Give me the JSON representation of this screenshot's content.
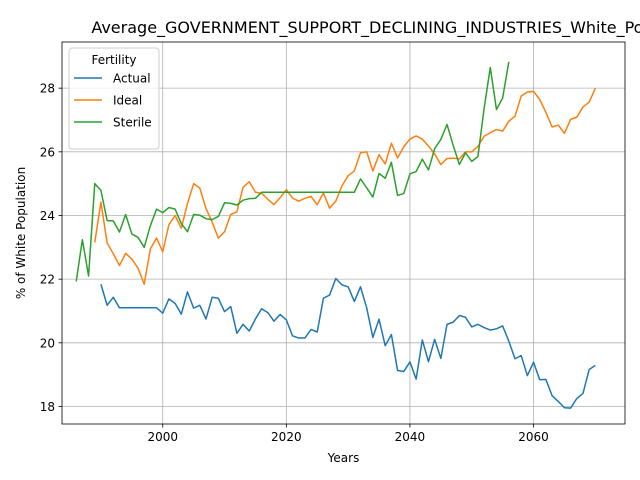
{
  "chart_data": {
    "type": "line",
    "title": "Average_GOVERNMENT_SUPPORT_DECLINING_INDUSTRIES_White_Population",
    "xlabel": "Years",
    "ylabel": "% of White Population",
    "xlim": [
      1983.7,
      2074.8
    ],
    "ylim": [
      17.45,
      29.45
    ],
    "xticks": [
      2000,
      2020,
      2040,
      2060
    ],
    "yticks": [
      18,
      20,
      22,
      24,
      26,
      28
    ],
    "grid": true,
    "legend": {
      "title": "Fertility",
      "placement": "top-left"
    },
    "series": [
      {
        "name": "Actual",
        "color": "#1f77b4",
        "x": [
          1990,
          1991,
          1992,
          1993,
          1994,
          1995,
          1996,
          1997,
          1998,
          1999,
          2000,
          2001,
          2002,
          2003,
          2004,
          2005,
          2006,
          2007,
          2008,
          2009,
          2010,
          2011,
          2012,
          2013,
          2014,
          2015,
          2016,
          2017,
          2018,
          2019,
          2020,
          2021,
          2022,
          2023,
          2024,
          2025,
          2026,
          2027,
          2028,
          2029,
          2030,
          2031,
          2032,
          2033,
          2034,
          2035,
          2036,
          2037,
          2038,
          2039,
          2040,
          2041,
          2042,
          2043,
          2044,
          2045,
          2046,
          2047,
          2048,
          2049,
          2050,
          2051,
          2052,
          2053,
          2054,
          2055,
          2056,
          2057,
          2058,
          2059,
          2060,
          2061,
          2062,
          2063,
          2064,
          2065,
          2066,
          2067,
          2068,
          2069,
          2070
        ],
        "values": [
          21.84,
          21.18,
          21.43,
          21.1,
          21.1,
          21.1,
          21.1,
          21.1,
          21.1,
          21.1,
          20.93,
          21.38,
          21.24,
          20.9,
          21.6,
          21.09,
          21.18,
          20.75,
          21.43,
          21.4,
          20.98,
          21.14,
          20.3,
          20.58,
          20.37,
          20.75,
          21.07,
          20.95,
          20.68,
          20.89,
          20.72,
          20.22,
          20.15,
          20.15,
          20.42,
          20.34,
          21.4,
          21.5,
          22.02,
          21.82,
          21.76,
          21.3,
          21.76,
          21.1,
          20.17,
          20.74,
          19.91,
          20.26,
          19.13,
          19.1,
          19.4,
          18.86,
          20.09,
          19.41,
          20.11,
          19.51,
          20.58,
          20.65,
          20.86,
          20.8,
          20.5,
          20.58,
          20.48,
          20.4,
          20.44,
          20.53,
          20.05,
          19.5,
          19.6,
          18.97,
          19.39,
          18.84,
          18.85,
          18.34,
          18.16,
          17.96,
          17.95,
          18.25,
          18.41,
          19.16,
          19.29
        ]
      },
      {
        "name": "Ideal",
        "color": "#ff7f0e",
        "x": [
          1989,
          1990,
          1991,
          1992,
          1993,
          1994,
          1995,
          1996,
          1997,
          1998,
          1999,
          2000,
          2001,
          2002,
          2003,
          2004,
          2005,
          2006,
          2007,
          2008,
          2009,
          2010,
          2011,
          2012,
          2013,
          2014,
          2015,
          2016,
          2017,
          2018,
          2019,
          2020,
          2021,
          2022,
          2023,
          2024,
          2025,
          2026,
          2027,
          2028,
          2029,
          2030,
          2031,
          2032,
          2033,
          2034,
          2035,
          2036,
          2037,
          2038,
          2039,
          2040,
          2041,
          2042,
          2043,
          2044,
          2045,
          2046,
          2047,
          2048,
          2049,
          2050,
          2051,
          2052,
          2053,
          2054,
          2055,
          2056,
          2057,
          2058,
          2059,
          2060,
          2061,
          2062,
          2063,
          2064,
          2065,
          2066,
          2067,
          2068,
          2069,
          2070
        ],
        "values": [
          23.15,
          24.42,
          23.14,
          22.8,
          22.43,
          22.81,
          22.63,
          22.35,
          21.84,
          22.95,
          23.29,
          22.86,
          23.71,
          24.0,
          23.6,
          24.37,
          25.0,
          24.86,
          24.22,
          23.79,
          23.29,
          23.49,
          24.03,
          24.12,
          24.88,
          25.06,
          24.73,
          24.7,
          24.51,
          24.34,
          24.56,
          24.81,
          24.55,
          24.45,
          24.54,
          24.6,
          24.34,
          24.71,
          24.23,
          24.45,
          24.93,
          25.25,
          25.4,
          25.97,
          26.0,
          25.4,
          25.91,
          25.62,
          26.27,
          25.81,
          26.16,
          26.4,
          26.5,
          26.4,
          26.18,
          25.93,
          25.6,
          25.79,
          25.8,
          25.78,
          26.0,
          26.0,
          26.17,
          26.49,
          26.6,
          26.7,
          26.65,
          26.96,
          27.12,
          27.75,
          27.88,
          27.9,
          27.64,
          27.24,
          26.78,
          26.84,
          26.58,
          27.02,
          27.09,
          27.41,
          27.56,
          28.0
        ]
      },
      {
        "name": "Sterile",
        "color": "#2ca02c",
        "x": [
          1986,
          1987,
          1988,
          1989,
          1990,
          1991,
          1992,
          1993,
          1994,
          1995,
          1996,
          1997,
          1998,
          1999,
          2000,
          2001,
          2002,
          2003,
          2004,
          2005,
          2006,
          2007,
          2008,
          2009,
          2010,
          2011,
          2012,
          2013,
          2014,
          2015,
          2016,
          2017,
          2018,
          2019,
          2020,
          2021,
          2022,
          2023,
          2024,
          2025,
          2026,
          2027,
          2028,
          2029,
          2030,
          2031,
          2032,
          2033,
          2034,
          2035,
          2036,
          2037,
          2038,
          2039,
          2040,
          2041,
          2042,
          2043,
          2044,
          2045,
          2046,
          2047,
          2048,
          2049,
          2050,
          2051,
          2052,
          2053,
          2054,
          2055,
          2056
        ],
        "values": [
          21.93,
          23.24,
          22.1,
          25.0,
          24.79,
          23.84,
          23.83,
          23.48,
          24.03,
          23.42,
          23.31,
          23.0,
          23.68,
          24.2,
          24.09,
          24.25,
          24.2,
          23.75,
          23.49,
          24.03,
          24.01,
          23.9,
          23.87,
          23.97,
          24.4,
          24.38,
          24.33,
          24.48,
          24.53,
          24.54,
          24.73,
          24.73,
          24.73,
          24.73,
          24.73,
          24.73,
          24.73,
          24.73,
          24.73,
          24.73,
          24.73,
          24.73,
          24.73,
          24.73,
          24.73,
          24.73,
          25.15,
          24.87,
          24.58,
          25.32,
          25.17,
          25.67,
          24.63,
          24.69,
          25.31,
          25.38,
          25.77,
          25.43,
          26.1,
          26.39,
          26.86,
          26.2,
          25.6,
          25.97,
          25.7,
          25.85,
          27.36,
          28.65,
          27.33,
          27.69,
          28.83
        ]
      }
    ]
  }
}
